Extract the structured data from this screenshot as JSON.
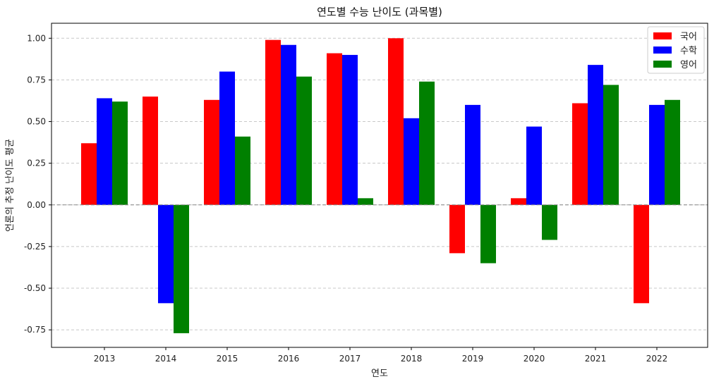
{
  "chart_data": {
    "type": "bar",
    "title": "연도별 수능 난이도 (과목별)",
    "xlabel": "연도",
    "ylabel": "언론의 추정 난이도 평균",
    "categories": [
      "2013",
      "2014",
      "2015",
      "2016",
      "2017",
      "2018",
      "2019",
      "2020",
      "2021",
      "2022"
    ],
    "series": [
      {
        "name": "국어",
        "color": "#ff0000",
        "values": [
          0.37,
          0.65,
          0.63,
          0.99,
          0.91,
          1.0,
          -0.29,
          0.04,
          0.61,
          -0.59
        ]
      },
      {
        "name": "수학",
        "color": "#0000ff",
        "values": [
          0.64,
          -0.59,
          0.8,
          0.96,
          0.9,
          0.52,
          0.6,
          0.47,
          0.84,
          0.6
        ]
      },
      {
        "name": "영어",
        "color": "#008000",
        "values": [
          0.62,
          -0.77,
          0.41,
          0.77,
          0.04,
          0.74,
          -0.35,
          -0.21,
          0.72,
          0.63
        ]
      }
    ],
    "ylim": [
      -0.855,
      1.09
    ],
    "yticks": [
      "-0.75",
      "-0.50",
      "-0.25",
      "0.00",
      "0.25",
      "0.50",
      "0.75",
      "1.00"
    ],
    "grid": "y-dashed",
    "zero_line": true,
    "legend": "top-right"
  }
}
